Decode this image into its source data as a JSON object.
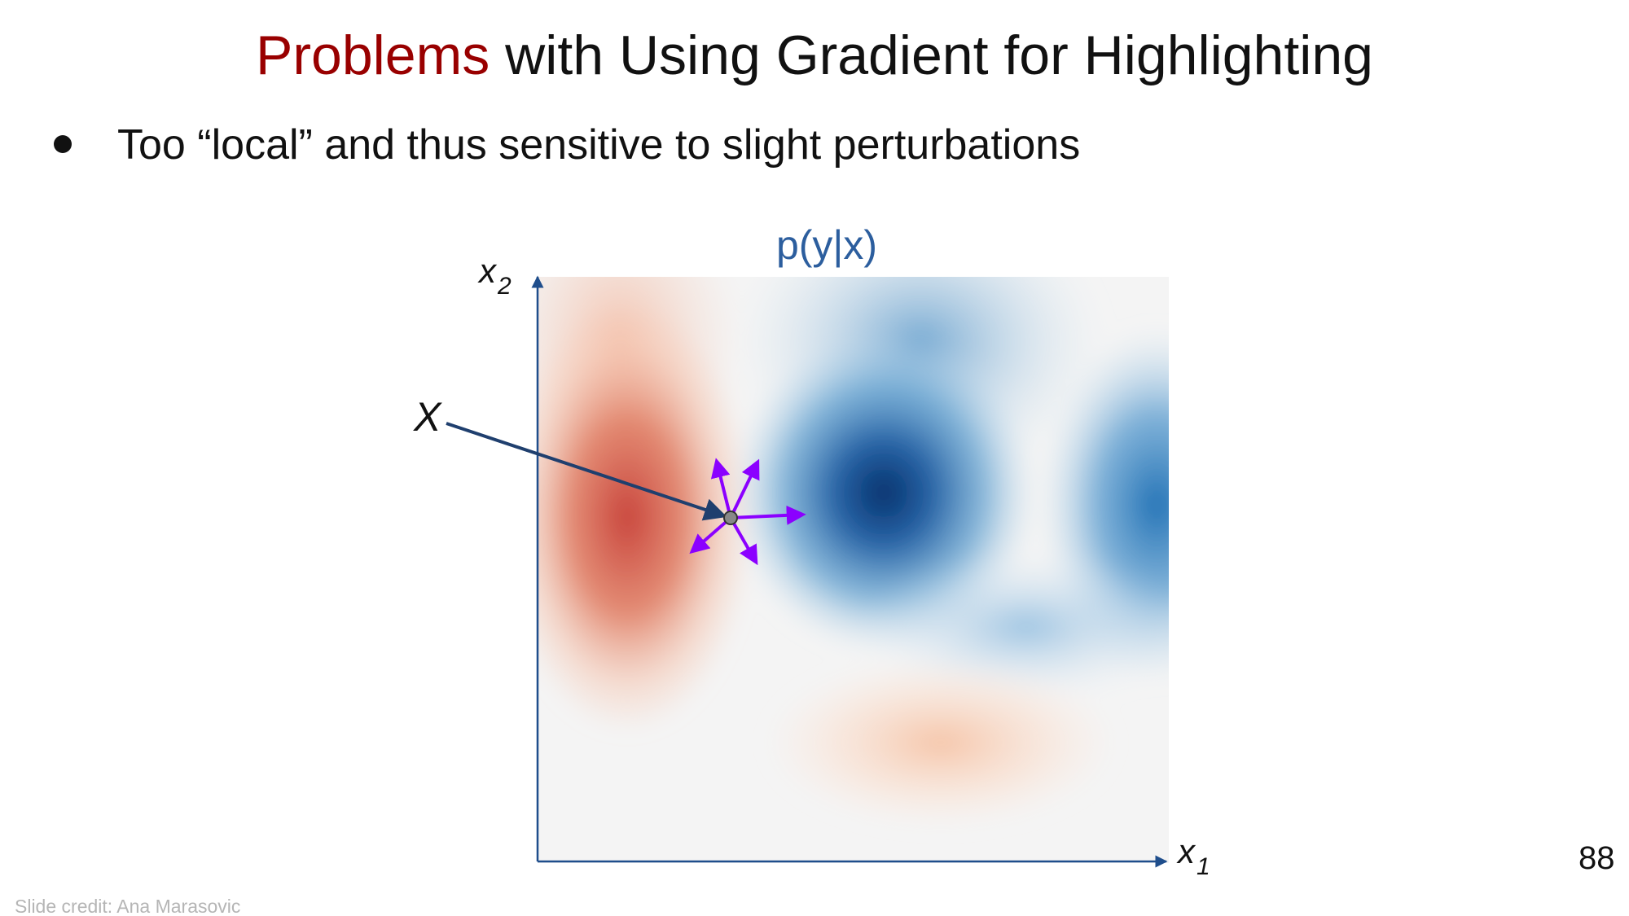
{
  "slide": {
    "title_highlight": "Problems",
    "title_rest": " with Using Gradient for Highlighting",
    "bullets": [
      "Too “local” and thus sensitive to slight perturbations"
    ],
    "credit": "Slide credit: Ana Marasovic",
    "page_number": "88"
  },
  "diagram": {
    "plot_title": "p(y|x)",
    "x_axis_label": "x",
    "x_axis_subscript": "1",
    "y_axis_label": "x",
    "y_axis_subscript": "2",
    "point_label": "X",
    "colors": {
      "title_highlight": "#990000",
      "plot_title": "#2c5e9e",
      "axis": "#1f4e8c",
      "pointer_arrow": "#1f3f6e",
      "perturbation_arrows": "#8b00ff",
      "point_fill": "#888888",
      "red_region": "#c8433b",
      "blue_region": "#08306b",
      "background_field": "#f4f4f4"
    },
    "icons": [
      "pointer-arrow",
      "perturbation-arrows",
      "input-point"
    ]
  }
}
